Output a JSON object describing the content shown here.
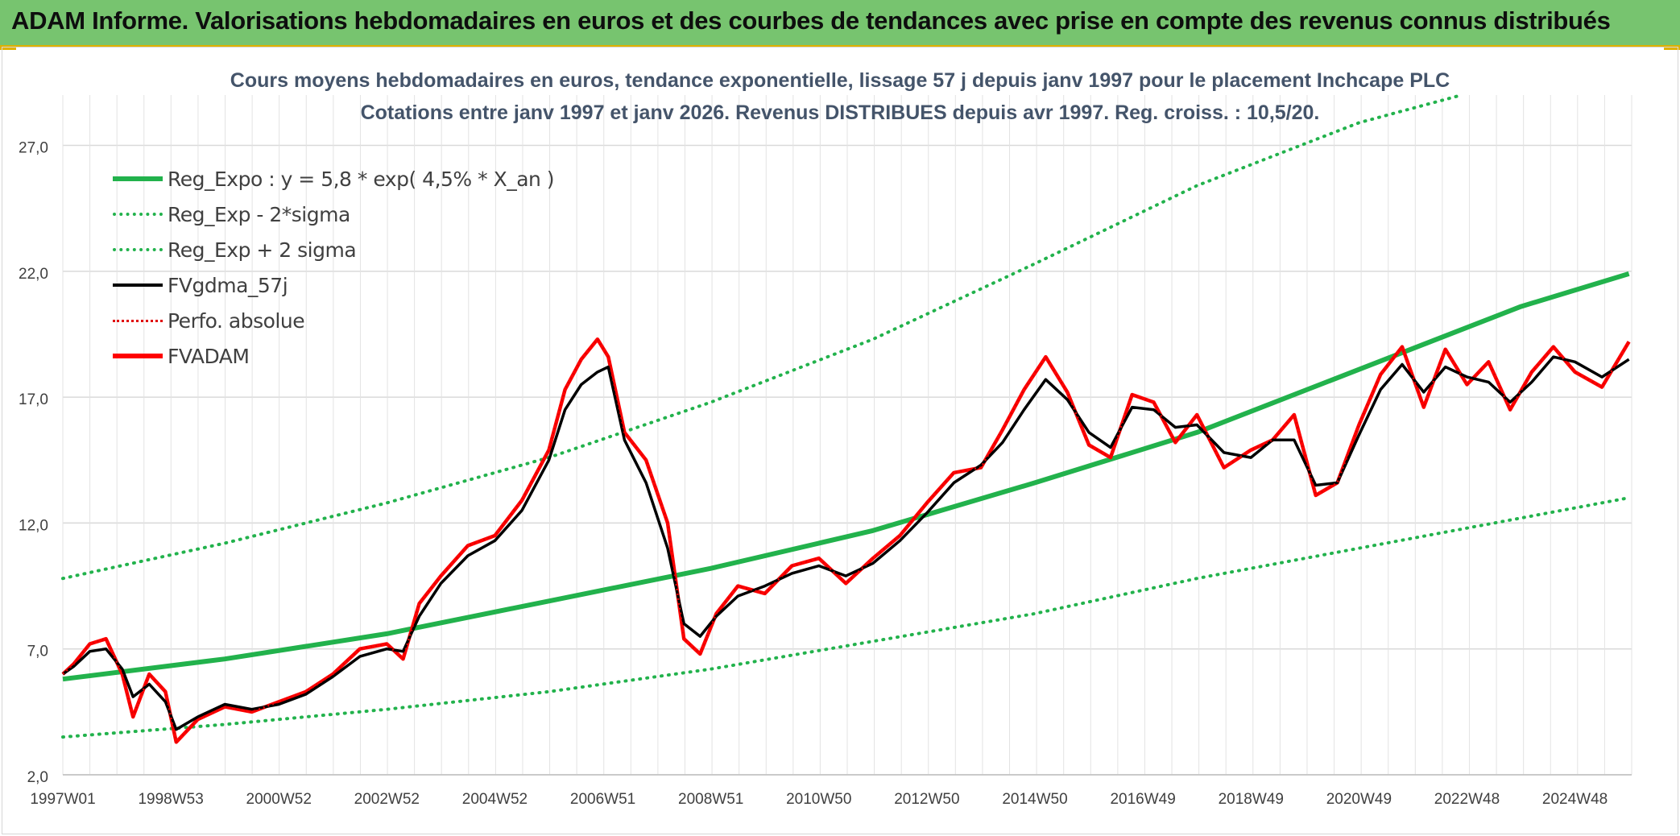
{
  "header": {
    "title": "ADAM Informe. Valorisations hebdomadaires en euros et des courbes de tendances avec prise en compte des revenus connus distribués"
  },
  "colors": {
    "banner": "#77c46f",
    "accent": "#e0b000",
    "reg_expo": "#22b24c",
    "sigma": "#22b24c",
    "fvgdma": "#000000",
    "perfo": "#e00000",
    "fvadam": "#ff0000"
  },
  "chart_data": {
    "type": "line",
    "title": "Cours moyens hebdomadaires en euros, tendance exponentielle, lissage 57 j depuis janv 1997 pour le placement Inchcape PLC",
    "subtitle": "Cotations entre janv 1997 et janv 2026. Revenus DISTRIBUES depuis avr 1997. Reg. croiss. : 10,5/20.",
    "xlabel": "",
    "ylabel": "",
    "ylim": [
      2,
      29
    ],
    "yticks": [
      "2,0",
      "7,0",
      "12,0",
      "17,0",
      "22,0",
      "27,0"
    ],
    "xticks": [
      "1997W01",
      "1998W53",
      "2000W52",
      "2002W52",
      "2004W52",
      "2006W51",
      "2008W51",
      "2010W50",
      "2012W50",
      "2014W50",
      "2016W49",
      "2018W49",
      "2020W49",
      "2022W48",
      "2024W48"
    ],
    "xrange": [
      1997.0,
      2026.05
    ],
    "grid": true,
    "legend_position": "top-left",
    "series": [
      {
        "name": "Reg_Expo : y = 5,8 * exp( 4,5% *  X_an )",
        "style": "solid-thick",
        "color": "#22b24c",
        "x": [
          1997.0,
          2000.0,
          2003.0,
          2006.0,
          2009.0,
          2012.0,
          2015.0,
          2018.0,
          2021.0,
          2024.0,
          2026.0
        ],
        "values": [
          5.8,
          6.6,
          7.6,
          8.9,
          10.2,
          11.7,
          13.6,
          15.6,
          18.1,
          20.6,
          21.9
        ]
      },
      {
        "name": "Reg_Exp - 2*sigma",
        "style": "dotted",
        "color": "#22b24c",
        "x": [
          1997.0,
          2000.0,
          2003.0,
          2006.0,
          2009.0,
          2012.0,
          2015.0,
          2018.0,
          2021.0,
          2024.0,
          2026.0
        ],
        "values": [
          3.5,
          4.0,
          4.6,
          5.3,
          6.2,
          7.3,
          8.4,
          9.8,
          11.0,
          12.2,
          13.0
        ]
      },
      {
        "name": "Reg_Exp + 2 sigma",
        "style": "dotted",
        "color": "#22b24c",
        "x": [
          1997.0,
          2000.0,
          2003.0,
          2006.0,
          2009.0,
          2012.0,
          2015.0,
          2018.0,
          2021.0,
          2022.9
        ],
        "values": [
          9.8,
          11.2,
          12.8,
          14.6,
          16.8,
          19.3,
          22.3,
          25.4,
          27.9,
          29.0
        ]
      },
      {
        "name": "FVgdma_57j",
        "style": "solid",
        "color": "#000000",
        "x": [
          1997.0,
          1997.2,
          1997.5,
          1997.8,
          1998.1,
          1998.3,
          1998.6,
          1998.9,
          1999.1,
          1999.5,
          2000.0,
          2000.5,
          2001.0,
          2001.5,
          2002.0,
          2002.5,
          2003.0,
          2003.3,
          2003.6,
          2004.0,
          2004.5,
          2005.0,
          2005.5,
          2006.0,
          2006.3,
          2006.6,
          2006.9,
          2007.1,
          2007.4,
          2007.8,
          2008.2,
          2008.5,
          2008.8,
          2009.1,
          2009.5,
          2010.0,
          2010.5,
          2011.0,
          2011.5,
          2012.0,
          2012.5,
          2013.0,
          2013.5,
          2014.0,
          2014.4,
          2014.8,
          2015.2,
          2015.6,
          2016.0,
          2016.4,
          2016.8,
          2017.2,
          2017.6,
          2018.0,
          2018.5,
          2019.0,
          2019.4,
          2019.8,
          2020.2,
          2020.6,
          2021.0,
          2021.4,
          2021.8,
          2022.2,
          2022.6,
          2023.0,
          2023.4,
          2023.8,
          2024.2,
          2024.6,
          2025.0,
          2025.5,
          2026.0
        ],
        "values": [
          6.0,
          6.3,
          6.9,
          7.0,
          6.2,
          5.1,
          5.6,
          4.9,
          3.8,
          4.3,
          4.8,
          4.6,
          4.8,
          5.2,
          5.9,
          6.7,
          7.0,
          6.9,
          8.3,
          9.6,
          10.7,
          11.3,
          12.5,
          14.5,
          16.5,
          17.5,
          18.0,
          18.2,
          15.3,
          13.6,
          11.0,
          8.0,
          7.5,
          8.3,
          9.1,
          9.5,
          10.0,
          10.3,
          9.9,
          10.4,
          11.3,
          12.4,
          13.6,
          14.3,
          15.2,
          16.5,
          17.7,
          16.9,
          15.6,
          15.0,
          16.6,
          16.5,
          15.8,
          15.9,
          14.8,
          14.6,
          15.3,
          15.3,
          13.5,
          13.6,
          15.5,
          17.3,
          18.3,
          17.2,
          18.2,
          17.8,
          17.6,
          16.8,
          17.6,
          18.6,
          18.4,
          17.8,
          18.5
        ]
      },
      {
        "name": "Perfo. absolue",
        "style": "dotted",
        "color": "#e00000",
        "x": [
          1997.0,
          1997.2,
          1997.5,
          1997.8,
          1998.1,
          1998.3,
          1998.6,
          1998.9,
          1999.1,
          1999.5,
          2000.0,
          2000.5,
          2001.0,
          2001.5,
          2002.0,
          2002.5,
          2003.0,
          2003.3,
          2003.6,
          2004.0,
          2004.5,
          2005.0,
          2005.5,
          2006.0,
          2006.3,
          2006.6,
          2006.9,
          2007.1,
          2007.4,
          2007.8,
          2008.2,
          2008.5,
          2008.8,
          2009.1,
          2009.5,
          2010.0,
          2010.5,
          2011.0,
          2011.5,
          2012.0,
          2012.5,
          2013.0,
          2013.5,
          2014.0,
          2014.4,
          2014.8,
          2015.2,
          2015.6,
          2016.0,
          2016.4,
          2016.8,
          2017.2,
          2017.6,
          2018.0,
          2018.5,
          2019.0,
          2019.4,
          2019.8,
          2020.2,
          2020.6,
          2021.0,
          2021.4,
          2021.8,
          2022.2,
          2022.6,
          2023.0,
          2023.4,
          2023.8,
          2024.2,
          2024.6,
          2025.0,
          2025.5,
          2026.0
        ],
        "values": [
          6.0,
          6.4,
          7.2,
          7.4,
          6.0,
          4.3,
          6.0,
          5.3,
          3.3,
          4.2,
          4.7,
          4.5,
          4.9,
          5.3,
          6.0,
          7.0,
          7.2,
          6.6,
          8.8,
          9.9,
          11.1,
          11.5,
          12.9,
          14.9,
          17.3,
          18.5,
          19.3,
          18.6,
          15.6,
          14.5,
          12.0,
          7.4,
          6.8,
          8.4,
          9.5,
          9.2,
          10.3,
          10.6,
          9.6,
          10.6,
          11.5,
          12.8,
          14.0,
          14.2,
          15.7,
          17.3,
          18.6,
          17.2,
          15.1,
          14.6,
          17.1,
          16.8,
          15.2,
          16.3,
          14.2,
          14.9,
          15.3,
          16.3,
          13.1,
          13.6,
          15.9,
          17.9,
          19.0,
          16.6,
          18.9,
          17.5,
          18.4,
          16.5,
          18.0,
          19.0,
          18.0,
          17.4,
          19.2
        ]
      },
      {
        "name": "FVADAM",
        "style": "solid-thick",
        "color": "#ff0000",
        "x": [
          1997.0,
          1997.2,
          1997.5,
          1997.8,
          1998.1,
          1998.3,
          1998.6,
          1998.9,
          1999.1,
          1999.5,
          2000.0,
          2000.5,
          2001.0,
          2001.5,
          2002.0,
          2002.5,
          2003.0,
          2003.3,
          2003.6,
          2004.0,
          2004.5,
          2005.0,
          2005.5,
          2006.0,
          2006.3,
          2006.6,
          2006.9,
          2007.1,
          2007.4,
          2007.8,
          2008.2,
          2008.5,
          2008.8,
          2009.1,
          2009.5,
          2010.0,
          2010.5,
          2011.0,
          2011.5,
          2012.0,
          2012.5,
          2013.0,
          2013.5,
          2014.0,
          2014.4,
          2014.8,
          2015.2,
          2015.6,
          2016.0,
          2016.4,
          2016.8,
          2017.2,
          2017.6,
          2018.0,
          2018.5,
          2019.0,
          2019.4,
          2019.8,
          2020.2,
          2020.6,
          2021.0,
          2021.4,
          2021.8,
          2022.2,
          2022.6,
          2023.0,
          2023.4,
          2023.8,
          2024.2,
          2024.6,
          2025.0,
          2025.5,
          2026.0
        ],
        "values": [
          6.0,
          6.4,
          7.2,
          7.4,
          6.0,
          4.3,
          6.0,
          5.3,
          3.3,
          4.2,
          4.7,
          4.5,
          4.9,
          5.3,
          6.0,
          7.0,
          7.2,
          6.6,
          8.8,
          9.9,
          11.1,
          11.5,
          12.9,
          14.9,
          17.3,
          18.5,
          19.3,
          18.6,
          15.6,
          14.5,
          12.0,
          7.4,
          6.8,
          8.4,
          9.5,
          9.2,
          10.3,
          10.6,
          9.6,
          10.6,
          11.5,
          12.8,
          14.0,
          14.2,
          15.7,
          17.3,
          18.6,
          17.2,
          15.1,
          14.6,
          17.1,
          16.8,
          15.2,
          16.3,
          14.2,
          14.9,
          15.3,
          16.3,
          13.1,
          13.6,
          15.9,
          17.9,
          19.0,
          16.6,
          18.9,
          17.5,
          18.4,
          16.5,
          18.0,
          19.0,
          18.0,
          17.4,
          19.2
        ]
      }
    ]
  }
}
